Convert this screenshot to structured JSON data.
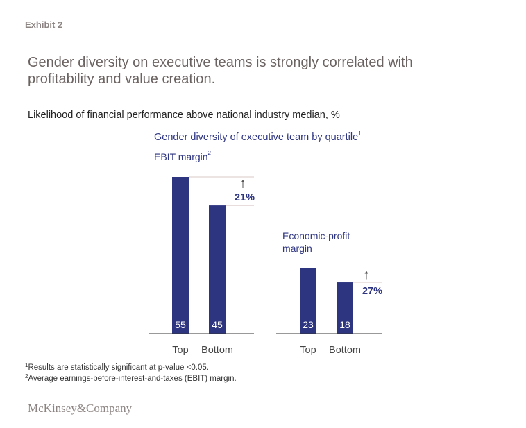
{
  "exhibit_label": "Exhibit 2",
  "title": "Gender diversity on executive teams is strongly correlated with profitability and value creation.",
  "subtitle": "Likelihood of financial performance above national industry median, %",
  "group_title": "Gender diversity of executive team by quartile",
  "group_title_sup": "1",
  "footnotes": [
    {
      "sup": "1",
      "text": "Results are statistically significant at p-value <0.05."
    },
    {
      "sup": "2",
      "text": "Average earnings-before-interest-and-taxes (EBIT) margin."
    }
  ],
  "logo": "McKinsey&Company",
  "colors": {
    "bar": "#2e3580",
    "text_accent": "#2e3580",
    "guide_line": "#d9c7c7",
    "axis": "#333333"
  },
  "chart_data": [
    {
      "type": "bar",
      "title": "EBIT margin",
      "title_sup": "2",
      "categories": [
        "Top",
        "Bottom"
      ],
      "values": [
        55,
        45
      ],
      "annotation": "21%",
      "unit": "%"
    },
    {
      "type": "bar",
      "title": "Economic-profit margin",
      "categories": [
        "Top",
        "Bottom"
      ],
      "values": [
        23,
        18
      ],
      "annotation": "27%",
      "unit": "%"
    }
  ]
}
